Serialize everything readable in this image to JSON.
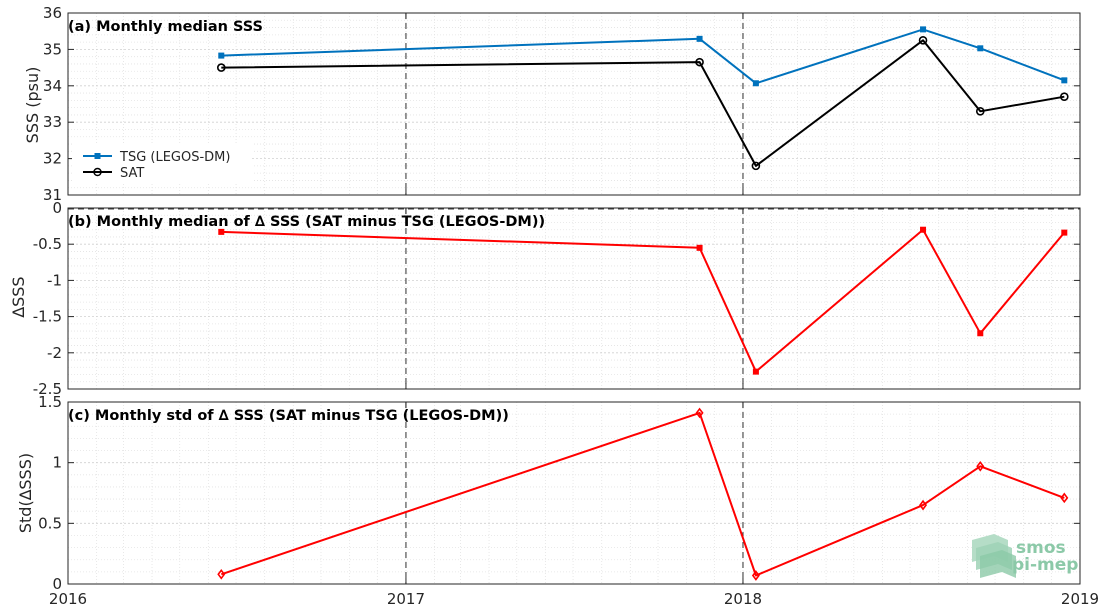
{
  "chart_data": [
    {
      "type": "line",
      "title": "(a) Monthly median SSS",
      "ylabel": "SSS (psu)",
      "xlim": [
        "2016-01-01",
        "2019-01-01"
      ],
      "ylim": [
        31,
        36
      ],
      "yticks": [
        31,
        32,
        33,
        34,
        35,
        36
      ],
      "ytick_labels": [
        "31",
        "32",
        "33",
        "34",
        "35",
        "36"
      ],
      "grid": true,
      "legend": "bottom-left",
      "series": [
        {
          "name": "TSG (LEGOS-DM)",
          "color": "#0072bd",
          "marker": "square",
          "x": [
            "2016-06-15",
            "2017-11-15",
            "2018-01-15",
            "2018-07-15",
            "2018-09-15",
            "2018-12-15"
          ],
          "y": [
            34.83,
            35.29,
            34.07,
            35.55,
            35.03,
            34.15
          ]
        },
        {
          "name": "SAT",
          "color": "#000000",
          "marker": "circle",
          "x": [
            "2016-06-15",
            "2017-11-15",
            "2018-01-15",
            "2018-07-15",
            "2018-09-15",
            "2018-12-15"
          ],
          "y": [
            34.5,
            34.65,
            31.8,
            35.25,
            33.3,
            33.7
          ]
        }
      ]
    },
    {
      "type": "line",
      "title": "(b) Monthly median of ∆ SSS (SAT minus TSG (LEGOS-DM))",
      "ylabel": "∆SSS",
      "xlim": [
        "2016-01-01",
        "2019-01-01"
      ],
      "ylim": [
        -2.5,
        0
      ],
      "yticks": [
        -2.5,
        -2,
        -1.5,
        -1,
        -0.5,
        0
      ],
      "ytick_labels": [
        "-2.5",
        "-2",
        "-1.5",
        "-1",
        "-0.5",
        "0"
      ],
      "zero_line": true,
      "grid": true,
      "series": [
        {
          "color": "#ff0000",
          "marker": "square",
          "x": [
            "2016-06-15",
            "2017-11-15",
            "2018-01-15",
            "2018-07-15",
            "2018-09-15",
            "2018-12-15"
          ],
          "y": [
            -0.33,
            -0.55,
            -2.26,
            -0.3,
            -1.73,
            -0.34
          ]
        }
      ]
    },
    {
      "type": "line",
      "title": "(c) Monthly std of ∆ SSS (SAT minus TSG (LEGOS-DM))",
      "ylabel": "Std(∆SSS)",
      "xlim": [
        "2016-01-01",
        "2019-01-01"
      ],
      "ylim": [
        0,
        1.5
      ],
      "yticks": [
        0,
        0.5,
        1,
        1.5
      ],
      "ytick_labels": [
        "0",
        "0.5",
        "1",
        "1.5"
      ],
      "xticks": [
        "2016-01-01",
        "2017-01-01",
        "2018-01-01",
        "2019-01-01"
      ],
      "xtick_labels": [
        "2016",
        "2017",
        "2018",
        "2019"
      ],
      "grid": true,
      "series": [
        {
          "color": "#ff0000",
          "marker": "diamond",
          "x": [
            "2016-06-15",
            "2017-11-15",
            "2018-01-15",
            "2018-07-15",
            "2018-09-15",
            "2018-12-15"
          ],
          "y": [
            0.08,
            1.41,
            0.07,
            0.65,
            0.97,
            0.71
          ]
        }
      ]
    }
  ],
  "year_markers": [
    "2017-01-01",
    "2018-01-01"
  ],
  "logo": {
    "line1": "smos",
    "line2": "pi-mep"
  }
}
